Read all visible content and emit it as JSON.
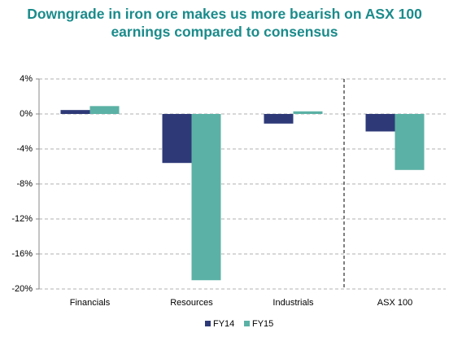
{
  "chart_data": {
    "type": "bar",
    "title": "Downgrade in iron ore makes us more bearish on ASX 100 earnings compared to consensus",
    "categories": [
      "Financials",
      "Resources",
      "Industrials",
      "ASX 100"
    ],
    "series": [
      {
        "name": "FY14",
        "color": "#2e3a78",
        "values": [
          0.45,
          -5.6,
          -1.1,
          -2.0
        ]
      },
      {
        "name": "FY15",
        "color": "#5bb1a5",
        "values": [
          0.9,
          -19.0,
          0.3,
          -6.4
        ]
      }
    ],
    "ylim": [
      -20,
      4
    ],
    "yticks": [
      {
        "value": 4,
        "label": "4%"
      },
      {
        "value": 0,
        "label": "0%"
      },
      {
        "value": -4,
        "label": "-4%"
      },
      {
        "value": -8,
        "label": "-8%"
      },
      {
        "value": -12,
        "label": "-12%"
      },
      {
        "value": -16,
        "label": "-16%"
      },
      {
        "value": -20,
        "label": "-20%"
      }
    ],
    "grid": true
  }
}
